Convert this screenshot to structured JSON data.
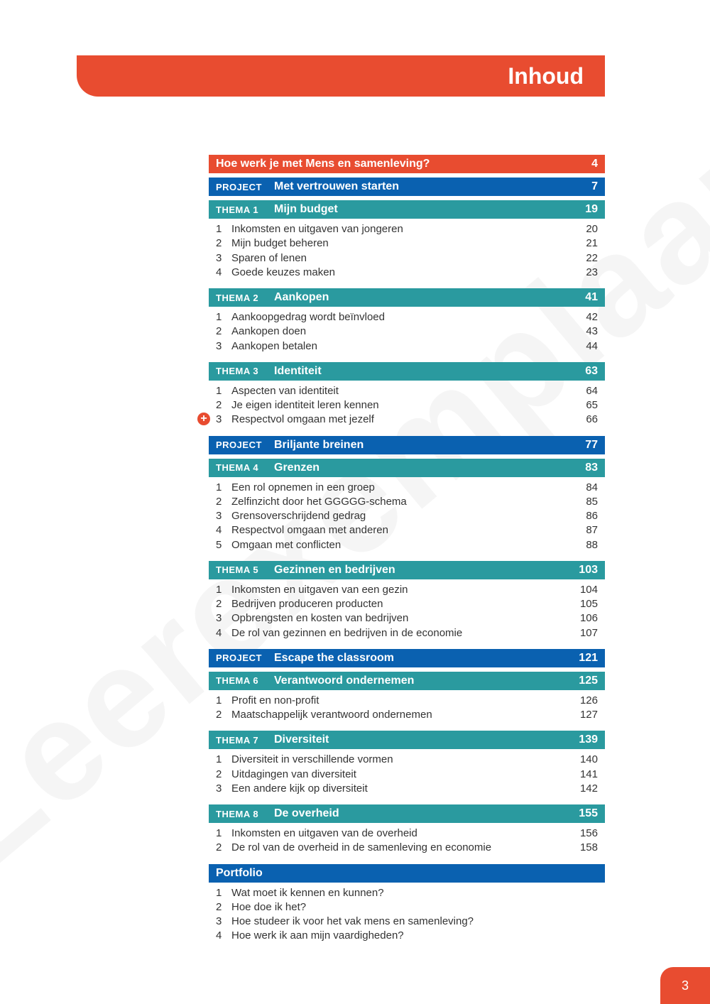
{
  "watermark": "Leerexemplaar",
  "page_title": "Inhoud",
  "page_number": "3",
  "colors": {
    "orange": "#e84c30",
    "blue": "#0a61b0",
    "teal": "#2a9a9f",
    "text": "#333333",
    "bg": "#ffffff"
  },
  "sections": [
    {
      "type": "bar",
      "style": "orange",
      "label": "",
      "title": "Hoe werk je met Mens en samenleving?",
      "page": "4"
    },
    {
      "type": "bar",
      "style": "blue",
      "label": "PROJECT",
      "title": "Met vertrouwen starten",
      "page": "7"
    },
    {
      "type": "bar",
      "style": "teal",
      "label": "THEMA 1",
      "title": "Mijn budget",
      "page": "19",
      "items": [
        {
          "num": "1",
          "text": "Inkomsten en uitgaven van jongeren",
          "page": "20"
        },
        {
          "num": "2",
          "text": "Mijn budget beheren",
          "page": "21"
        },
        {
          "num": "3",
          "text": "Sparen of lenen",
          "page": "22"
        },
        {
          "num": "4",
          "text": "Goede keuzes maken",
          "page": "23"
        }
      ]
    },
    {
      "type": "bar",
      "style": "teal",
      "label": "THEMA 2",
      "title": "Aankopen",
      "page": "41",
      "items": [
        {
          "num": "1",
          "text": "Aankoopgedrag wordt beïnvloed",
          "page": "42"
        },
        {
          "num": "2",
          "text": "Aankopen doen",
          "page": "43"
        },
        {
          "num": "3",
          "text": "Aankopen betalen",
          "page": "44"
        }
      ]
    },
    {
      "type": "bar",
      "style": "teal",
      "label": "THEMA 3",
      "title": "Identiteit",
      "page": "63",
      "items": [
        {
          "num": "1",
          "text": "Aspecten van identiteit",
          "page": "64"
        },
        {
          "num": "2",
          "text": "Je eigen identiteit leren kennen",
          "page": "65"
        },
        {
          "num": "3",
          "text": "Respectvol omgaan met jezelf",
          "page": "66",
          "plus": true
        }
      ]
    },
    {
      "type": "bar",
      "style": "blue",
      "label": "PROJECT",
      "title": "Briljante breinen",
      "page": "77"
    },
    {
      "type": "bar",
      "style": "teal",
      "label": "THEMA 4",
      "title": "Grenzen",
      "page": "83",
      "items": [
        {
          "num": "1",
          "text": "Een rol opnemen in een groep",
          "page": "84"
        },
        {
          "num": "2",
          "text": "Zelfinzicht door het GGGGG-schema",
          "page": "85"
        },
        {
          "num": "3",
          "text": "Grensoverschrijdend gedrag",
          "page": "86"
        },
        {
          "num": "4",
          "text": "Respectvol omgaan met anderen",
          "page": "87"
        },
        {
          "num": "5",
          "text": "Omgaan met conflicten",
          "page": "88"
        }
      ]
    },
    {
      "type": "bar",
      "style": "teal",
      "label": "THEMA 5",
      "title": "Gezinnen en bedrijven",
      "page": "103",
      "items": [
        {
          "num": "1",
          "text": "Inkomsten en uitgaven van een gezin",
          "page": "104"
        },
        {
          "num": "2",
          "text": "Bedrijven produceren producten",
          "page": "105"
        },
        {
          "num": "3",
          "text": "Opbrengsten en kosten van bedrijven",
          "page": "106"
        },
        {
          "num": "4",
          "text": "De rol van gezinnen en bedrijven in de economie",
          "page": "107"
        }
      ]
    },
    {
      "type": "bar",
      "style": "blue",
      "label": "PROJECT",
      "title": "Escape the classroom",
      "page": "121"
    },
    {
      "type": "bar",
      "style": "teal",
      "label": "THEMA 6",
      "title": "Verantwoord ondernemen",
      "page": "125",
      "items": [
        {
          "num": "1",
          "text": "Profit en non-profit",
          "page": "126"
        },
        {
          "num": "2",
          "text": "Maatschappelijk verantwoord ondernemen",
          "page": "127"
        }
      ]
    },
    {
      "type": "bar",
      "style": "teal",
      "label": "THEMA 7",
      "title": "Diversiteit",
      "page": "139",
      "items": [
        {
          "num": "1",
          "text": "Diversiteit in verschillende vormen",
          "page": "140"
        },
        {
          "num": "2",
          "text": "Uitdagingen van diversiteit",
          "page": "141"
        },
        {
          "num": "3",
          "text": "Een andere kijk op diversiteit",
          "page": "142"
        }
      ]
    },
    {
      "type": "bar",
      "style": "teal",
      "label": "Thema 8",
      "title": "De overheid",
      "page": "155",
      "items": [
        {
          "num": "1",
          "text": "Inkomsten en uitgaven van de overheid",
          "page": "156"
        },
        {
          "num": "2",
          "text": "De rol van de overheid in de samenleving en economie",
          "page": "158"
        }
      ]
    },
    {
      "type": "bar",
      "style": "blue",
      "label": "",
      "title": "Portfolio",
      "page": "",
      "items": [
        {
          "num": "1",
          "text": "Wat moet ik kennen en kunnen?",
          "page": ""
        },
        {
          "num": "2",
          "text": "Hoe doe ik het?",
          "page": ""
        },
        {
          "num": "3",
          "text": "Hoe studeer ik voor het vak mens en samenleving?",
          "page": ""
        },
        {
          "num": "4",
          "text": "Hoe werk ik aan mijn vaardigheden?",
          "page": ""
        }
      ]
    }
  ]
}
